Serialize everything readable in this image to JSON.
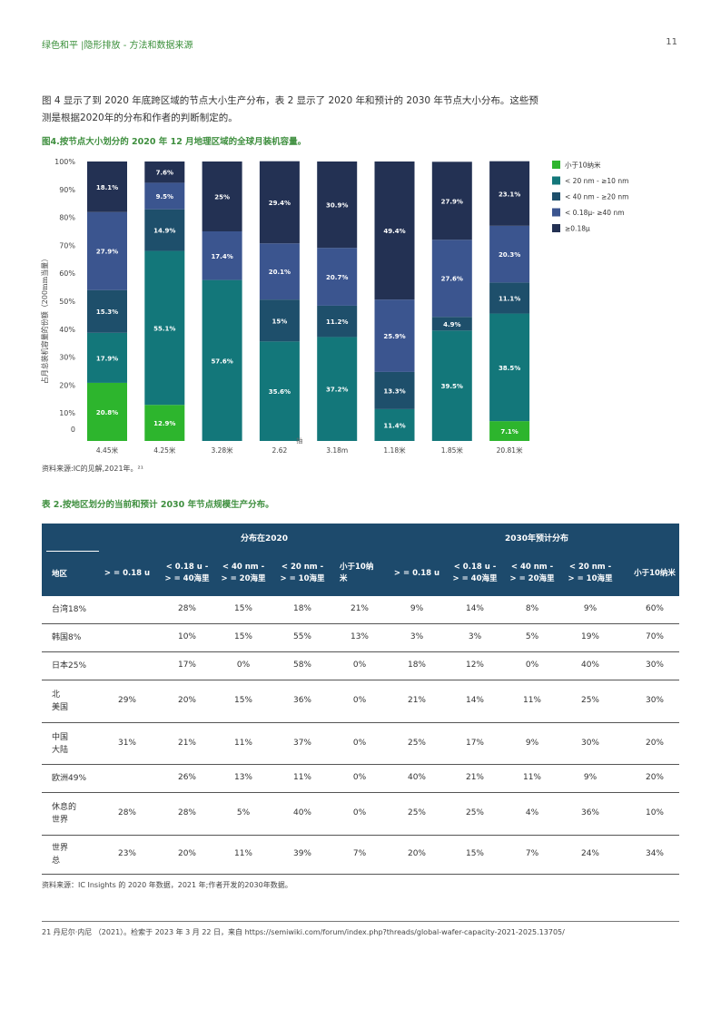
{
  "header": {
    "title": "绿色和平 |隐形排放 - 方法和数据来源",
    "page_number": "11"
  },
  "intro": {
    "line1": "图 4 显示了到 2020 年底跨区域的节点大小生产分布，表 2 显示了 2020 年和预计的 2030 年节点大小分布。这些预",
    "line2": "测是根据2020年的分布和作者的判断制定的。"
  },
  "figure": {
    "title": "图4.按节点大小划分的 2020 年 12 月地理区域的全球月装机容量。",
    "source": "资料来源:IC的见解,2021年。²¹"
  },
  "chart_data": {
    "type": "bar",
    "stacked": true,
    "ylabel": "占月总装机容量的份额（200mm当量）",
    "ylim": [
      0,
      100
    ],
    "yticks": [
      "0",
      "10%",
      "20%",
      "30%",
      "40%",
      "50%",
      "60%",
      "70%",
      "80%",
      "90%",
      "100%"
    ],
    "categories": [
      "4.45米",
      "4.25米",
      "3.28米",
      "2.62",
      "3.18m",
      "1.18米",
      "1.85米",
      "20.81米"
    ],
    "overlap_text": "抽",
    "colors": {
      "小于10纳米": "#2db52d",
      "< 20 nm - ≥10 nm": "#13777a",
      "< 40 nm - ≥20 nm": "#1e4f6b",
      "< 0.18μ- ≥40 nm": "#3b558f",
      "≥0.18μ": "#233153"
    },
    "series": [
      {
        "name": "小于10纳米",
        "values": [
          20.8,
          12.9,
          0,
          0,
          0,
          0,
          0,
          7.1
        ]
      },
      {
        "name": "< 20 nm - ≥10 nm",
        "values": [
          17.9,
          55.1,
          57.6,
          35.6,
          37.2,
          11.4,
          39.5,
          38.5
        ]
      },
      {
        "name": "< 40 nm - ≥20 nm",
        "values": [
          15.3,
          14.9,
          0,
          15,
          11.2,
          13.3,
          4.9,
          11.1
        ]
      },
      {
        "name": "< 0.18μ- ≥40 nm",
        "values": [
          27.9,
          9.5,
          17.4,
          20.1,
          20.7,
          25.9,
          27.6,
          20.3
        ]
      },
      {
        "name": "≥0.18μ",
        "values": [
          18.1,
          7.6,
          25,
          29.4,
          30.9,
          49.4,
          27.9,
          23.1
        ]
      }
    ],
    "labels": [
      [
        "20.8%",
        "17.9%",
        "15.3%",
        "27.9%",
        "18.1%"
      ],
      [
        "12.9%",
        "55.1%",
        "14.9%",
        "9.5%",
        "7.6%"
      ],
      [
        "",
        "57.6%",
        "",
        "17.4%",
        "25%"
      ],
      [
        "",
        "35.6%",
        "15%",
        "20.1%",
        "29.4%"
      ],
      [
        "",
        "37.2%",
        "11.2%",
        "20.7%",
        "30.9%"
      ],
      [
        "",
        "11.4%",
        "13.3%",
        "25.9%",
        "49.4%"
      ],
      [
        "",
        "39.5%",
        "4.9%",
        "27.6%",
        "27.9%"
      ],
      [
        "7.1%",
        "38.5%",
        "11.1%",
        "20.3%",
        "23.1%"
      ]
    ],
    "legend": [
      {
        "label": "小于10纳米",
        "color": "#2db52d"
      },
      {
        "label": "< 20 nm - ≥10 nm",
        "color": "#13777a"
      },
      {
        "label": "< 40 nm - ≥20 nm",
        "color": "#1e4f6b"
      },
      {
        "label": "< 0.18μ- ≥40 nm",
        "color": "#3b558f"
      },
      {
        "label": "≥0.18μ",
        "color": "#233153"
      }
    ],
    "legend_position": "right"
  },
  "table": {
    "title": "表 2.按地区划分的当前和预计 2030 年节点规模生产分布。",
    "group_2020": "分布在2020",
    "group_2030": "2030年预计分布",
    "col_region": "地区",
    "columns": [
      [
        "> = 0.18 u"
      ],
      [
        "< 0.18 u -",
        "> = 40海里"
      ],
      [
        "< 40 nm -",
        "> = 20海里"
      ],
      [
        "< 20 nm -",
        "> = 10海里"
      ],
      [
        "小于10纳",
        "米"
      ],
      [
        "> = 0.18 u"
      ],
      [
        "< 0.18 u -",
        "> = 40海里"
      ],
      [
        "< 40 nm -",
        "> = 20海里"
      ],
      [
        "< 20 nm -",
        "> = 10海里"
      ],
      [
        "小于10纳米"
      ]
    ],
    "rows": [
      {
        "region": [
          "台湾18%"
        ],
        "values": [
          "",
          "28%",
          "15%",
          "18%",
          "21%",
          "9%",
          "14%",
          "8%",
          "9%",
          "60%"
        ]
      },
      {
        "region": [
          "韩国8%"
        ],
        "values": [
          "",
          "10%",
          "15%",
          "55%",
          "13%",
          "3%",
          "3%",
          "5%",
          "19%",
          "70%"
        ]
      },
      {
        "region": [
          "日本25%"
        ],
        "values": [
          "",
          "17%",
          "0%",
          "58%",
          "0%",
          "18%",
          "12%",
          "0%",
          "40%",
          "30%"
        ]
      },
      {
        "region": [
          "北",
          "美国"
        ],
        "values": [
          "29%",
          "20%",
          "15%",
          "36%",
          "0%",
          "21%",
          "14%",
          "11%",
          "25%",
          "30%"
        ]
      },
      {
        "region": [
          "中国",
          "大陆"
        ],
        "values": [
          "31%",
          "21%",
          "11%",
          "37%",
          "0%",
          "25%",
          "17%",
          "9%",
          "30%",
          "20%"
        ]
      },
      {
        "region": [
          "欧洲49%"
        ],
        "values": [
          "",
          "26%",
          "13%",
          "11%",
          "0%",
          "40%",
          "21%",
          "11%",
          "9%",
          "20%"
        ]
      },
      {
        "region": [
          "休息的",
          "世界"
        ],
        "values": [
          "28%",
          "28%",
          "5%",
          "40%",
          "0%",
          "25%",
          "25%",
          "4%",
          "36%",
          "10%"
        ]
      },
      {
        "region": [
          "世界",
          "总"
        ],
        "values": [
          "23%",
          "20%",
          "11%",
          "39%",
          "7%",
          "20%",
          "15%",
          "7%",
          "24%",
          "34%"
        ]
      }
    ],
    "source": "资料来源：IC Insights 的 2020 年数据，2021 年;作者开发的2030年数据。"
  },
  "footnote": "21 丹尼尔·内尼 （2021）。检索于 2023 年 3 月 22 日，来自 https://semiwiki.com/forum/index.php?threads/global-wafer-capacity-2021-2025.13705/"
}
